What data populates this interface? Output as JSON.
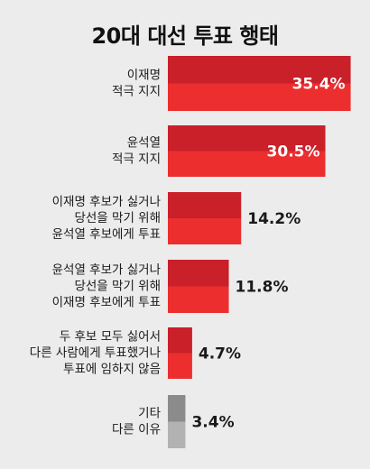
{
  "chart_data": {
    "type": "bar",
    "orientation": "horizontal",
    "title": "20대 대선 투표 행태",
    "categories": [
      [
        "이재명",
        "적극 지지"
      ],
      [
        "윤석열",
        "적극 지지"
      ],
      [
        "이재명 후보가 싫거나",
        "당선을 막기 위해",
        "윤석열 후보에게 투표"
      ],
      [
        "윤석열 후보가 싫거나",
        "당선을 막기 위해",
        "이재명 후보에게 투표"
      ],
      [
        "두 후보 모두 싫어서",
        "다른 사람에게 투표했거나",
        "투표에 임하지 않음"
      ],
      [
        "기타",
        "다른 이유"
      ]
    ],
    "values": [
      35.4,
      30.5,
      14.2,
      11.8,
      4.7,
      3.4
    ],
    "value_labels": [
      "35.4%",
      "30.5%",
      "14.2%",
      "11.8%",
      "4.7%",
      "3.4%"
    ],
    "xlim": [
      0,
      36
    ],
    "grid": false,
    "colors": {
      "bar_top": "#c9202a",
      "bar_bottom": "#ec2e2f",
      "other_top": "#8b8b8b",
      "other_bottom": "#b2b2b2"
    }
  }
}
